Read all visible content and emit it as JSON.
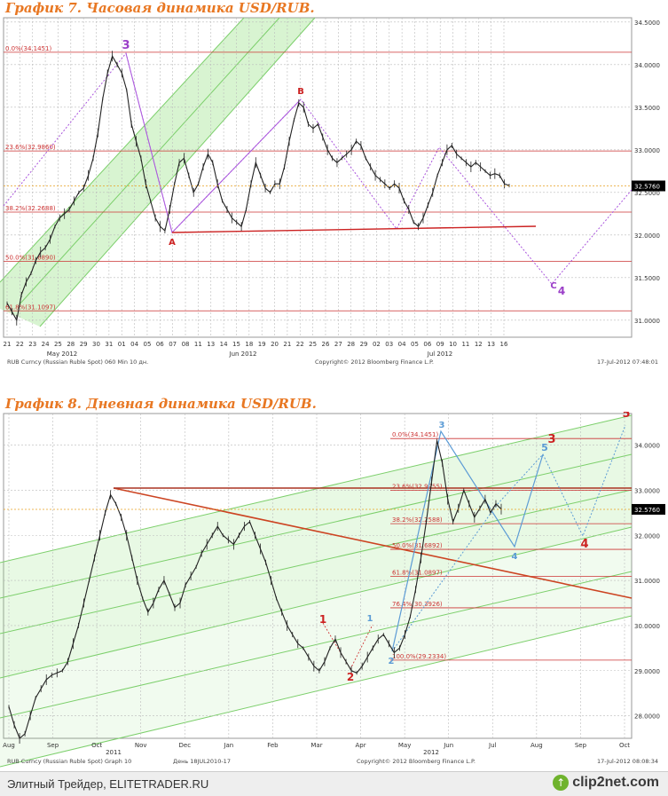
{
  "footer": {
    "text": "Элитный Трейдер, ELITETRADER.RU",
    "logo_text": "clip2net.com",
    "logo_icon": "upload-arrow-icon"
  },
  "chart_data": [
    {
      "type": "line",
      "title": "График 7.   Часовая динамика USD/RUB.",
      "price_range": [
        30.8,
        34.55
      ],
      "price_ticks": [
        "34.5000",
        "34.0000",
        "33.5000",
        "33.0000",
        "32.5000",
        "32.0000",
        "31.5000",
        "31.0000"
      ],
      "last_price": "32.5760",
      "x_tick_labels": [
        "21",
        "22",
        "23",
        "24",
        "25",
        "28",
        "29",
        "30",
        "31",
        "01",
        "04",
        "05",
        "06",
        "07",
        "08",
        "11",
        "13",
        "14",
        "15",
        "18",
        "19",
        "20",
        "21",
        "22",
        "25",
        "26",
        "27",
        "28",
        "29",
        "02",
        "03",
        "04",
        "05",
        "06",
        "09",
        "10",
        "11",
        "12",
        "13",
        "16"
      ],
      "month_labels": [
        "May 2012",
        "Jun 2012",
        "Jul 2012"
      ],
      "fib_levels": [
        {
          "label": "0.0%(34.1451)",
          "value": 34.1451
        },
        {
          "label": "23.6%(32.9860)",
          "value": 32.986
        },
        {
          "label": "38.2%(32.2688)",
          "value": 32.2688
        },
        {
          "label": "50.0%(31.6890)",
          "value": 31.689
        },
        {
          "label": "61.8%(31.1097)",
          "value": 31.1097
        }
      ],
      "series": [
        {
          "values": [
            31.2,
            31.1,
            31.0,
            31.3,
            31.45,
            31.55,
            31.7,
            31.8,
            31.85,
            31.95,
            32.1,
            32.2,
            32.25,
            32.3,
            32.4,
            32.5,
            32.55,
            32.7,
            32.9,
            33.2,
            33.6,
            33.9,
            34.1,
            34.0,
            33.9,
            33.7,
            33.3,
            33.1,
            32.9,
            32.6,
            32.4,
            32.2,
            32.1,
            32.05,
            32.3,
            32.6,
            32.85,
            32.9,
            32.7,
            32.5,
            32.6,
            32.8,
            32.95,
            32.85,
            32.6,
            32.4,
            32.3,
            32.2,
            32.15,
            32.1,
            32.3,
            32.6,
            32.85,
            32.7,
            32.55,
            32.5,
            32.6,
            32.6,
            32.8,
            33.1,
            33.35,
            33.55,
            33.5,
            33.3,
            33.25,
            33.3,
            33.15,
            33.0,
            32.9,
            32.85,
            32.9,
            32.95,
            33.0,
            33.1,
            33.05,
            32.9,
            32.8,
            32.7,
            32.65,
            32.6,
            32.55,
            32.6,
            32.55,
            32.4,
            32.3,
            32.15,
            32.1,
            32.2,
            32.35,
            32.5,
            32.7,
            32.85,
            33.0,
            33.05,
            32.95,
            32.9,
            32.85,
            32.8,
            32.85,
            32.8,
            32.75,
            32.7,
            32.72,
            32.7,
            32.6,
            32.58
          ]
        }
      ],
      "wave_labels": [
        {
          "text": "3",
          "color": "#9b3fc8"
        },
        {
          "text": "B",
          "color": "#cc2222"
        },
        {
          "text": "A",
          "color": "#cc2222"
        },
        {
          "text": "C",
          "color": "#9b3fc8"
        },
        {
          "text": "4",
          "color": "#9b3fc8"
        }
      ],
      "footer_left": "RUB Curncy (Russian Ruble Spot) 060 Min 10 дн.",
      "footer_center": "Copyright© 2012 Bloomberg Finance L.P.",
      "footer_right": "17-Jul-2012 07:48:01",
      "colors": {
        "price": "#222222",
        "fib": "#cc3333",
        "channel": "#8ee07a",
        "wave": "#aa55dd",
        "support": "#cc2222"
      }
    },
    {
      "type": "line",
      "title": "График 8.   Дневная динамика USD/RUB.",
      "price_range": [
        27.5,
        34.7
      ],
      "price_ticks": [
        "34.0000",
        "33.0000",
        "32.0000",
        "31.0000",
        "30.0000",
        "29.0000",
        "28.0000"
      ],
      "last_price": "32.5760",
      "x_tick_labels": [
        "Aug",
        "Sep",
        "Oct",
        "Nov",
        "Dec",
        "Jan",
        "Feb",
        "Mar",
        "Apr",
        "May",
        "Jun",
        "Jul",
        "Aug",
        "Sep",
        "Oct"
      ],
      "year_labels": [
        "2011",
        "2012"
      ],
      "fib_levels": [
        {
          "label": "0.0%(34.1451)",
          "value": 34.1451
        },
        {
          "label": "23.6%(32.9955)",
          "value": 32.9955
        },
        {
          "label": "38.2%(32.2588)",
          "value": 32.2588
        },
        {
          "label": "50.0%(31.6892)",
          "value": 31.6892
        },
        {
          "label": "61.8%(31.0897)",
          "value": 31.0897
        },
        {
          "label": "76.4%(30.3926)",
          "value": 30.3926
        },
        {
          "label": "100.0%(29.2334)",
          "value": 29.2334
        }
      ],
      "series": [
        {
          "values": [
            28.2,
            27.8,
            27.5,
            27.6,
            28.0,
            28.4,
            28.6,
            28.8,
            28.9,
            28.95,
            29.0,
            29.2,
            29.6,
            30.0,
            30.5,
            31.0,
            31.5,
            32.0,
            32.5,
            32.9,
            32.7,
            32.4,
            32.0,
            31.5,
            31.0,
            30.6,
            30.3,
            30.5,
            30.8,
            31.0,
            30.7,
            30.4,
            30.5,
            30.9,
            31.1,
            31.3,
            31.6,
            31.8,
            32.0,
            32.2,
            32.0,
            31.9,
            31.8,
            32.0,
            32.2,
            32.3,
            32.0,
            31.7,
            31.4,
            31.0,
            30.6,
            30.3,
            30.0,
            29.8,
            29.6,
            29.5,
            29.3,
            29.1,
            29.0,
            29.2,
            29.5,
            29.7,
            29.4,
            29.2,
            29.0,
            28.95,
            29.1,
            29.3,
            29.5,
            29.7,
            29.8,
            29.6,
            29.4,
            29.5,
            29.8,
            30.2,
            30.8,
            31.5,
            32.3,
            33.2,
            34.1,
            33.6,
            32.8,
            32.3,
            32.6,
            33.0,
            32.7,
            32.4,
            32.6,
            32.8,
            32.5,
            32.7,
            32.58
          ]
        }
      ],
      "wave_labels": [
        {
          "text": "1",
          "color": "#cc2222"
        },
        {
          "text": "2",
          "color": "#cc2222"
        },
        {
          "text": "1",
          "color": "#5b9bd5"
        },
        {
          "text": "2",
          "color": "#5b9bd5"
        },
        {
          "text": "3",
          "color": "#5b9bd5"
        },
        {
          "text": "4",
          "color": "#5b9bd5"
        },
        {
          "text": "5",
          "color": "#5b9bd5"
        },
        {
          "text": "3",
          "color": "#cc2222"
        },
        {
          "text": "4",
          "color": "#cc2222"
        },
        {
          "text": "5",
          "color": "#cc2222"
        }
      ],
      "footer_left": "RUB Curncy (Russian Ruble Spot) Graph 10",
      "footer_mid": "День 18JUL2010-17",
      "footer_center": "Copyright© 2012 Bloomberg Finance L.P.",
      "footer_right": "17-Jul-2012 08:08:34",
      "colors": {
        "price": "#222222",
        "fib": "#cc3333",
        "channel": "#8ee07a",
        "wave": "#5b9bd5",
        "trend": "#cc4422"
      }
    }
  ]
}
